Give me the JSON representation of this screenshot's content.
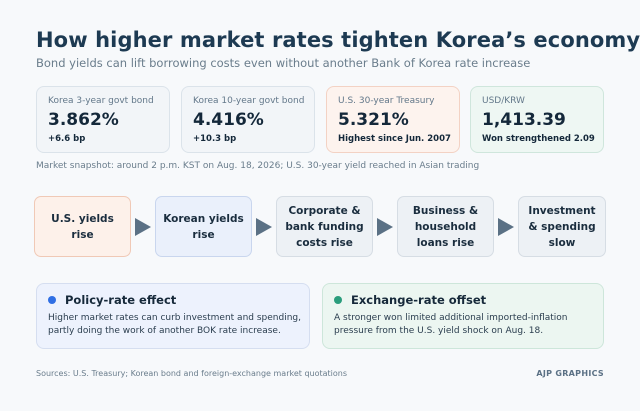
{
  "header": {
    "title": "How higher market rates tighten Korea’s economy",
    "subtitle": "Bond yields can lift borrowing costs even without another Bank of Korea rate increase"
  },
  "stats": [
    {
      "label": "Korea 3-year govt bond",
      "value": "3.862%",
      "change": "+6.6 bp"
    },
    {
      "label": "Korea 10-year govt bond",
      "value": "4.416%",
      "change": "+10.3 bp"
    },
    {
      "label": "U.S. 30-year Treasury",
      "value": "5.321%",
      "change": "Highest since Jun. 2007"
    },
    {
      "label": "USD/KRW",
      "value": "1,413.39",
      "change": "Won strengthened 2.09"
    }
  ],
  "snapshot_note": "Market snapshot: around 2 p.m. KST on Aug. 18, 2026; U.S. 30-year yield reached in Asian trading",
  "flow": [
    "U.S. yields rise",
    "Korean yields rise",
    "Corporate & bank funding costs rise",
    "Business & household loans rise",
    "Investment & spending slow"
  ],
  "cards": {
    "policy": {
      "title": "Policy-rate effect",
      "body": "Higher market rates can curb investment and spending, partly doing the work of another BOK rate increase."
    },
    "fx": {
      "title": "Exchange-rate offset",
      "body": "A stronger won limited additional imported-inflation pressure from the U.S. yield shock on Aug. 18."
    }
  },
  "footer": {
    "sources": "Sources: U.S. Treasury; Korean bond and foreign-exchange market quotations",
    "brand": "AJP GRAPHICS"
  },
  "colors": {
    "title": "#1d3a52",
    "policy_dot": "#2f6fe4",
    "fx_dot": "#2a9d7c",
    "arrow": "#5b7185",
    "warm_fill": "#fdf1ea",
    "blue_fill": "#eaf0fb",
    "mint_fill": "#eef7f3"
  }
}
